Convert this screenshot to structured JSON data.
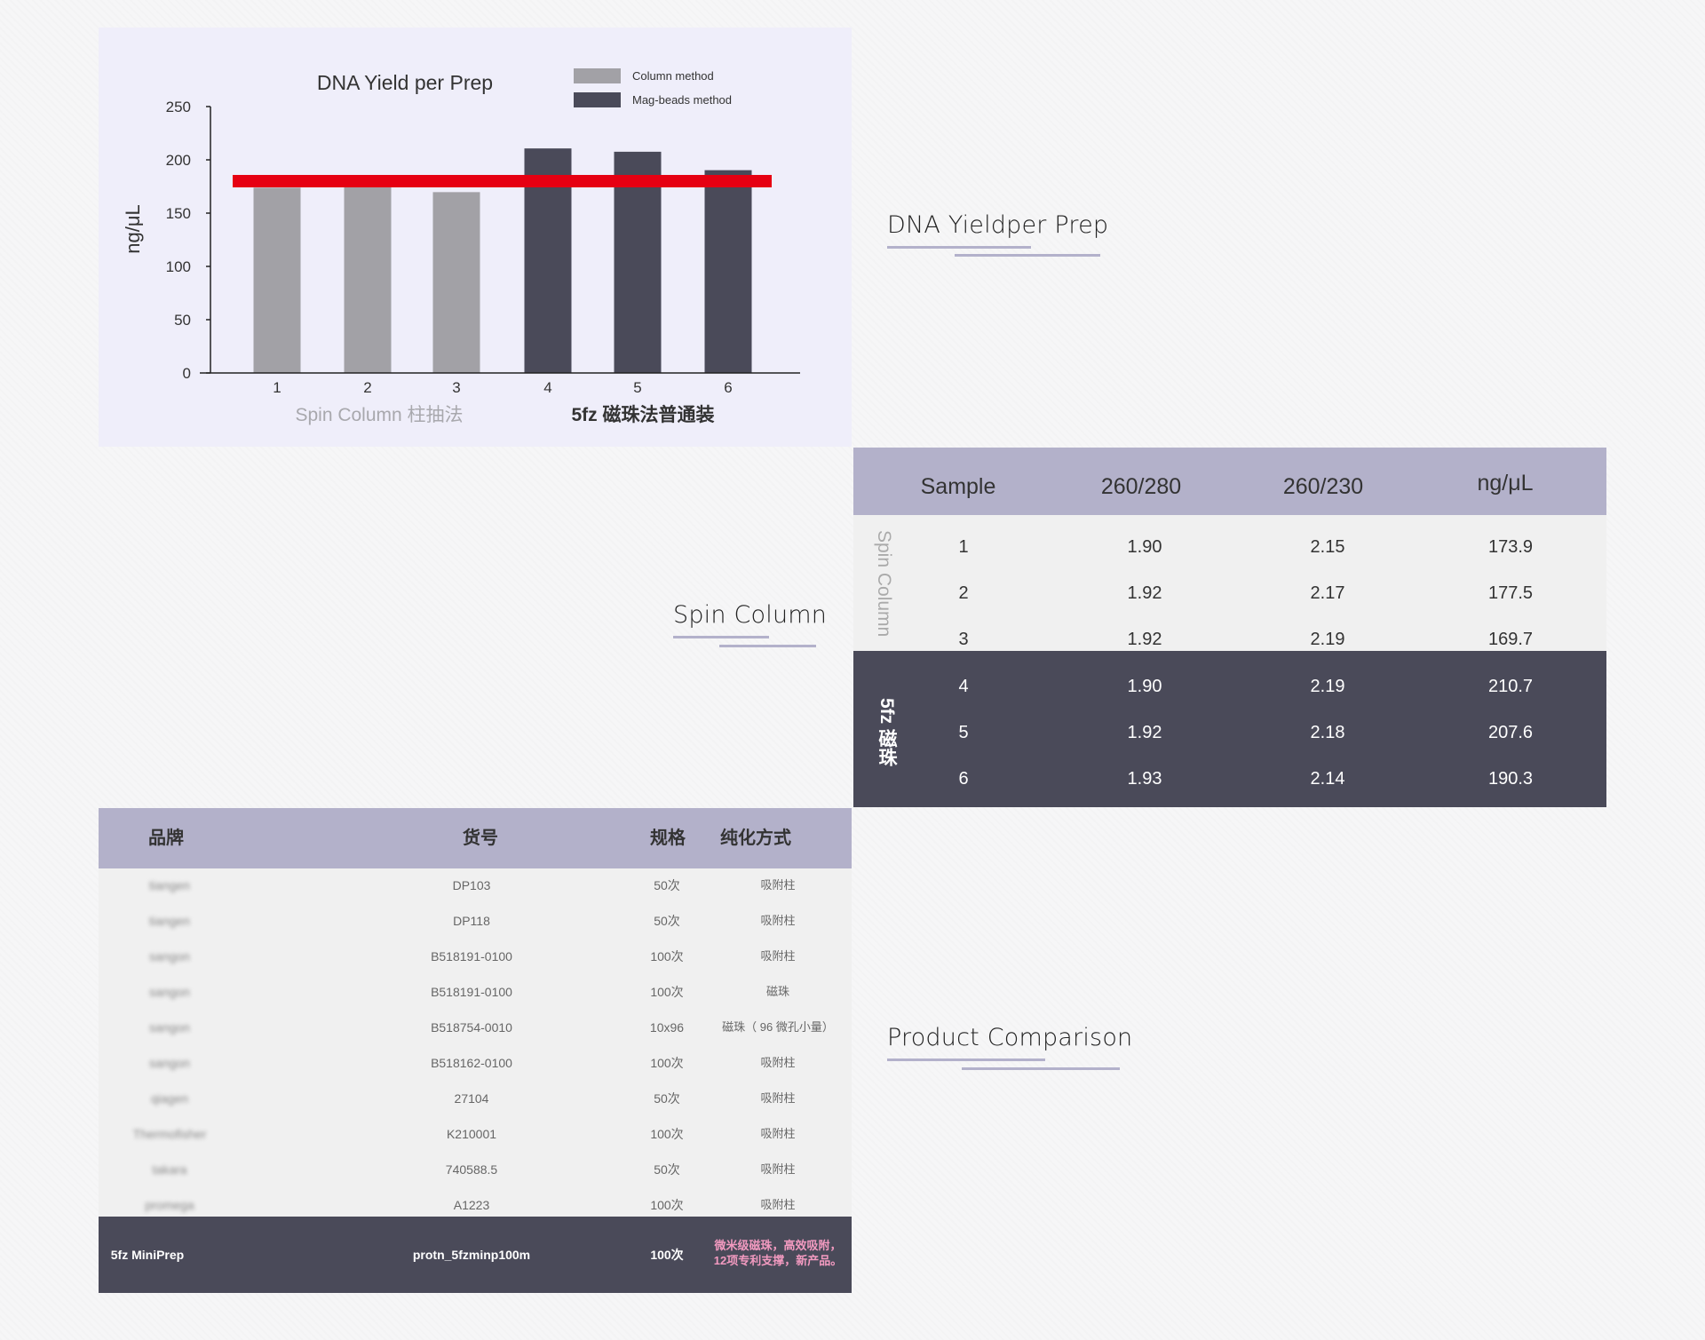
{
  "chart_data": {
    "type": "bar",
    "title": "DNA Yield per Prep",
    "ylabel": "ng/μL",
    "xlabel": "",
    "ylim": [
      0,
      250
    ],
    "yticks": [
      "0",
      "50",
      "100",
      "150",
      "200",
      "250"
    ],
    "categories": [
      "1",
      "2",
      "3",
      "4",
      "5",
      "6"
    ],
    "values": [
      173.9,
      177.5,
      169.7,
      210.7,
      207.6,
      190.3
    ],
    "series_of_bar": [
      0,
      0,
      0,
      1,
      1,
      1
    ],
    "series": [
      {
        "name": "Column method",
        "color": "#a2a1a6"
      },
      {
        "name": "Mag-beads method",
        "color": "#4a4a59"
      }
    ],
    "group_labels": [
      {
        "text": "Spin Column 柱抽法",
        "color": "#a8a8ad"
      },
      {
        "text": "5fz 磁珠法普通装",
        "color": "#333333"
      }
    ],
    "reference_line": {
      "value": 180,
      "color": "#e60012"
    },
    "legend_position": "top-right",
    "grid": false
  },
  "headings": {
    "dna_yield": "DNA Yieldper Prep",
    "spin_column": "Spin Column",
    "product_comparison": "Product Comparison"
  },
  "sample_table": {
    "columns": [
      "Sample",
      "260/280",
      "260/230",
      "ng/μL"
    ],
    "groups": [
      {
        "label": "Spin Column",
        "rows": [
          [
            "1",
            "1.90",
            "2.15",
            "173.9"
          ],
          [
            "2",
            "1.92",
            "2.17",
            "177.5"
          ],
          [
            "3",
            "1.92",
            "2.19",
            "169.7"
          ]
        ]
      },
      {
        "label": "5fz 磁珠",
        "rows": [
          [
            "4",
            "1.90",
            "2.19",
            "210.7"
          ],
          [
            "5",
            "1.92",
            "2.18",
            "207.6"
          ],
          [
            "6",
            "1.93",
            "2.14",
            "190.3"
          ]
        ]
      }
    ]
  },
  "product_table": {
    "columns": [
      "品牌",
      "货号",
      "规格",
      "纯化方式"
    ],
    "rows": [
      [
        "tiangen",
        "DP103",
        "50次",
        "吸附柱"
      ],
      [
        "tiangen",
        "DP118",
        "50次",
        "吸附柱"
      ],
      [
        "sangon",
        "B518191-0100",
        "100次",
        "吸附柱"
      ],
      [
        "sangon",
        "B518191-0100",
        "100次",
        "磁珠"
      ],
      [
        "sangon",
        "B518754-0010",
        "10x96",
        "磁珠（ 96 微孔小量）"
      ],
      [
        "sangon",
        "B518162-0100",
        "100次",
        "吸附柱"
      ],
      [
        "qiagen",
        "27104",
        "50次",
        "吸附柱"
      ],
      [
        "Thermofisher",
        "K210001",
        "100次",
        "吸附柱"
      ],
      [
        "takara",
        "740588.5",
        "50次",
        "吸附柱"
      ],
      [
        "promega",
        "A1223",
        "100次",
        "吸附柱"
      ]
    ],
    "highlight": {
      "brand": "5fz MiniPrep",
      "code": "protn_5fzminp100m",
      "spec": "100次",
      "method_line1": "微米级磁珠，高效吸附，",
      "method_line2": "12项专利支撑，新产品。",
      "method_color": "#f29ac0"
    }
  }
}
